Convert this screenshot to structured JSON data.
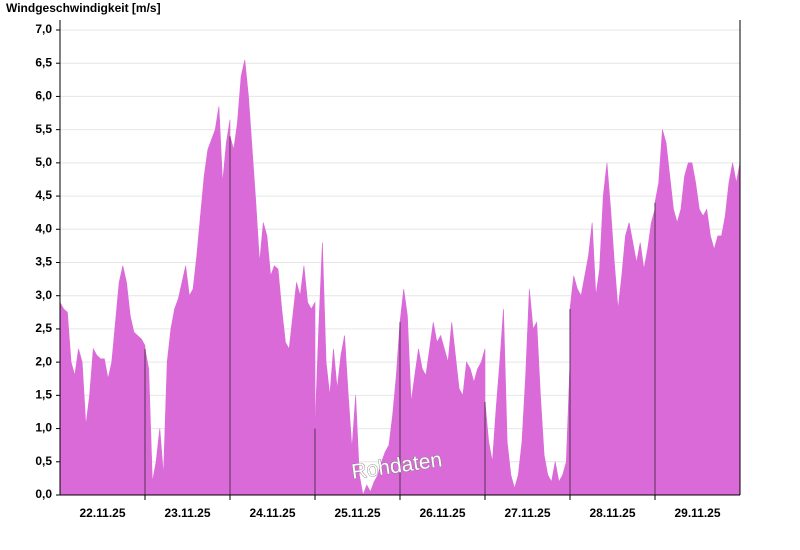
{
  "chart_data": {
    "type": "area",
    "title": "Windgeschwindigkeit [m/s]",
    "watermark": "Rohdaten",
    "color": "#da6ad8",
    "grid": true,
    "ylim": [
      0,
      7
    ],
    "yticks": [
      {
        "value": 0,
        "label": "0,0"
      },
      {
        "value": 0.5,
        "label": "0,5"
      },
      {
        "value": 1,
        "label": "1,0"
      },
      {
        "value": 1.5,
        "label": "1,5"
      },
      {
        "value": 2,
        "label": "2,0"
      },
      {
        "value": 2.5,
        "label": "2,5"
      },
      {
        "value": 3,
        "label": "3,0"
      },
      {
        "value": 3.5,
        "label": "3,5"
      },
      {
        "value": 4,
        "label": "4,0"
      },
      {
        "value": 4.5,
        "label": "4,5"
      },
      {
        "value": 5,
        "label": "5,0"
      },
      {
        "value": 5.5,
        "label": "5,5"
      },
      {
        "value": 6,
        "label": "6,0"
      },
      {
        "value": 6.5,
        "label": "6,5"
      },
      {
        "value": 7,
        "label": "7,0"
      }
    ],
    "days": [
      {
        "label": "22.11.25",
        "values": [
          2.9,
          2.8,
          2.75,
          2.0,
          1.8,
          2.2,
          2.0,
          1.05,
          1.5,
          2.2,
          2.1,
          2.05,
          2.05,
          1.75,
          2.0,
          2.6,
          3.2,
          3.45,
          3.2,
          2.7,
          2.45,
          2.4,
          2.35,
          2.25
        ]
      },
      {
        "label": "23.11.25",
        "values": [
          2.2,
          1.9,
          0.2,
          0.5,
          1.0,
          0.3,
          2.0,
          2.5,
          2.8,
          2.95,
          3.2,
          3.45,
          3.0,
          3.1,
          3.6,
          4.2,
          4.8,
          5.2,
          5.35,
          5.5,
          5.85,
          4.7,
          5.3,
          5.65
        ]
      },
      {
        "label": "24.11.25",
        "values": [
          5.4,
          5.2,
          5.6,
          6.3,
          6.55,
          6.0,
          5.2,
          4.4,
          3.5,
          4.1,
          3.9,
          3.3,
          3.45,
          3.4,
          2.8,
          2.3,
          2.2,
          2.7,
          3.2,
          3.0,
          3.45,
          2.9,
          2.8,
          2.9
        ]
      },
      {
        "label": "25.11.25",
        "values": [
          1.0,
          2.5,
          3.8,
          2.0,
          1.5,
          2.2,
          1.6,
          2.1,
          2.4,
          1.5,
          0.7,
          1.5,
          0.3,
          0.0,
          0.15,
          0.05,
          0.2,
          0.3,
          0.5,
          0.65,
          0.75,
          1.2,
          1.8,
          2.6
        ]
      },
      {
        "label": "26.11.25",
        "values": [
          2.6,
          3.1,
          2.7,
          1.4,
          1.8,
          2.2,
          1.9,
          1.8,
          2.2,
          2.6,
          2.3,
          2.4,
          2.2,
          2.0,
          2.6,
          2.1,
          1.6,
          1.5,
          2.0,
          1.9,
          1.7,
          1.9,
          2.0,
          2.2
        ]
      },
      {
        "label": "27.11.25",
        "values": [
          1.4,
          0.8,
          0.5,
          1.3,
          2.0,
          2.8,
          0.8,
          0.3,
          0.1,
          0.3,
          0.8,
          1.8,
          3.1,
          2.5,
          2.6,
          1.5,
          0.6,
          0.3,
          0.2,
          0.5,
          0.2,
          0.3,
          0.5,
          2.0
        ]
      },
      {
        "label": "28.11.25",
        "values": [
          2.8,
          3.3,
          3.1,
          3.0,
          3.3,
          3.6,
          4.1,
          3.0,
          3.4,
          4.5,
          5.0,
          4.3,
          3.5,
          2.8,
          3.3,
          3.9,
          4.1,
          3.8,
          3.5,
          3.8,
          3.4,
          3.7,
          4.1,
          4.3
        ]
      },
      {
        "label": "29.11.25",
        "values": [
          4.4,
          4.7,
          5.5,
          5.3,
          4.8,
          4.3,
          4.1,
          4.3,
          4.8,
          5.0,
          5.0,
          4.7,
          4.3,
          4.2,
          4.3,
          3.9,
          3.7,
          3.9,
          3.9,
          4.2,
          4.7,
          5.0,
          4.7,
          5.0
        ]
      }
    ]
  }
}
